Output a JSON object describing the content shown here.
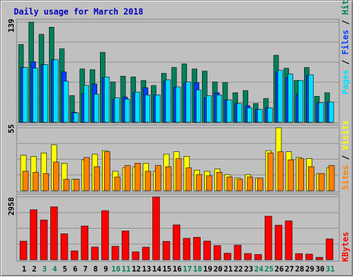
{
  "chart_data": {
    "type": "bar",
    "title": "Daily usage for March 2018",
    "categories": [
      "1",
      "2",
      "3",
      "4",
      "5",
      "6",
      "7",
      "8",
      "9",
      "10",
      "11",
      "12",
      "13",
      "14",
      "15",
      "16",
      "17",
      "18",
      "19",
      "20",
      "21",
      "22",
      "23",
      "24",
      "25",
      "26",
      "27",
      "28",
      "29",
      "30",
      "31"
    ],
    "weekend_days": [
      "3",
      "4",
      "10",
      "11",
      "17",
      "18",
      "24",
      "25",
      "31"
    ],
    "panels": [
      {
        "name": "hits-files-pages",
        "ymax": 139,
        "ymax_label": "139",
        "right_labels": [
          "Pages",
          "Files",
          "Hits"
        ],
        "series": [
          {
            "name": "Hits",
            "color": "#00805c",
            "values": [
              108,
              139,
              122,
              132,
              102,
              37,
              74,
              73,
              97,
              56,
              64,
              63,
              58,
              51,
              68,
              76,
              81,
              74,
              71,
              56,
              55,
              41,
              44,
              26,
              33,
              93,
              75,
              58,
              76,
              36,
              41
            ]
          },
          {
            "name": "Files",
            "color": "#0040ff",
            "values": [
              76,
              84,
              80,
              87,
              70,
              14,
              40,
              53,
              62,
              32,
              35,
              41,
              48,
              38,
              57,
              49,
              55,
              55,
              34,
              41,
              31,
              26,
              23,
              18,
              20,
              70,
              62,
              39,
              65,
              27,
              28
            ]
          },
          {
            "name": "Pages",
            "color": "#00e0ff",
            "values": [
              76,
              75,
              80,
              87,
              57,
              13,
              51,
              39,
              63,
              34,
              32,
              42,
              38,
              38,
              59,
              49,
              56,
              45,
              37,
              38,
              31,
              26,
              20,
              18,
              20,
              72,
              67,
              58,
              66,
              27,
              28
            ]
          }
        ]
      },
      {
        "name": "visits-sites",
        "ymax": 55,
        "ymax_label": "55",
        "right_labels": [
          "Sites",
          "Visits"
        ],
        "series": [
          {
            "name": "Visits",
            "color": "#ffff00",
            "values": [
              31,
              30,
              33,
              40,
              24,
              10,
              27,
              32,
              35,
              17,
              20,
              21,
              24,
              17,
              32,
              34,
              30,
              18,
              17,
              19,
              14,
              11,
              14,
              11,
              35,
              55,
              34,
              29,
              28,
              15,
              20
            ]
          },
          {
            "name": "Sites",
            "color": "#ff8000",
            "values": [
              17,
              16,
              15,
              25,
              10,
              10,
              29,
              21,
              34,
              12,
              22,
              24,
              17,
              22,
              21,
              28,
              20,
              14,
              13,
              16,
              12,
              10,
              12,
              11,
              33,
              34,
              27,
              28,
              21,
              15,
              22
            ]
          }
        ]
      },
      {
        "name": "kbytes",
        "ymax": 2958,
        "ymax_label": "2958",
        "right_labels": [
          "KBytes"
        ],
        "series": [
          {
            "name": "KBytes",
            "color": "#ff0000",
            "values": [
              873,
              2355,
              1870,
              2493,
              1223,
              420,
              1590,
              594,
              2307,
              629,
              1356,
              370,
              591,
              2958,
              865,
              1639,
              1009,
              1056,
              878,
              666,
              304,
              685,
              293,
              248,
              2047,
              1626,
              1826,
              290,
              262,
              111,
              978
            ]
          }
        ]
      }
    ]
  }
}
